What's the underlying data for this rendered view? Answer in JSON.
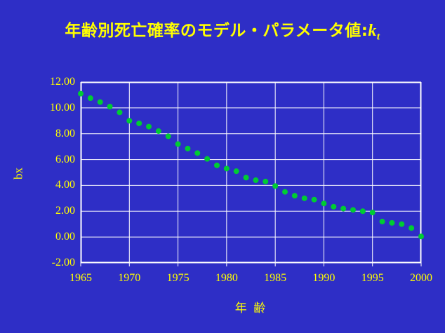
{
  "page": {
    "background_color": "#2e2ec6",
    "text_color": "#ffff00"
  },
  "title": {
    "text": "年齢別死亡確率のモデル・パラメータ値:",
    "param": "k",
    "param_sub": "t"
  },
  "chart_data": {
    "type": "scatter",
    "title": "年齢別死亡確率のモデル・パラメータ値: kt",
    "xlabel": "年 齢",
    "ylabel": "bx",
    "xlim": [
      1965,
      2000
    ],
    "ylim": [
      -2,
      12
    ],
    "grid": true,
    "legend": "none",
    "grid_color": "#ffffff",
    "marker_color": "#00cc33",
    "xticks": [
      1965,
      1970,
      1975,
      1980,
      1985,
      1990,
      1995,
      2000
    ],
    "xtick_labels": [
      "1965",
      "1970",
      "1975",
      "1980",
      "1985",
      "1990",
      "1995",
      "2000"
    ],
    "yticks": [
      12,
      10,
      8,
      6,
      4,
      2,
      0,
      -2
    ],
    "ytick_labels": [
      "12.00",
      "10.00",
      "8.00",
      "6.00",
      "4.00",
      "2.00",
      "0.00",
      "-2.00"
    ],
    "x": [
      1965,
      1966,
      1967,
      1968,
      1969,
      1970,
      1971,
      1972,
      1973,
      1974,
      1975,
      1976,
      1977,
      1978,
      1979,
      1980,
      1981,
      1982,
      1983,
      1984,
      1985,
      1986,
      1987,
      1988,
      1989,
      1990,
      1991,
      1992,
      1993,
      1994,
      1995,
      1996,
      1997,
      1998,
      1999,
      2000
    ],
    "y": [
      11.1,
      10.75,
      10.45,
      10.1,
      9.65,
      9.0,
      8.8,
      8.55,
      8.2,
      7.8,
      7.2,
      6.85,
      6.5,
      6.05,
      5.55,
      5.3,
      5.1,
      4.6,
      4.4,
      4.3,
      3.95,
      3.5,
      3.2,
      3.0,
      2.9,
      2.6,
      2.35,
      2.2,
      2.1,
      2.0,
      1.9,
      1.2,
      1.1,
      1.0,
      0.7,
      0.05
    ]
  }
}
